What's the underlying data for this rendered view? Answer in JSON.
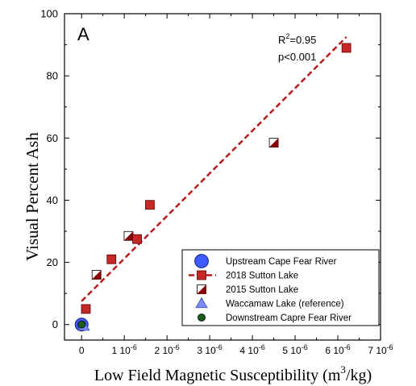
{
  "chart_data": {
    "type": "scatter",
    "panel_label": "A",
    "xlabel": "Low Field Magnetic Susceptibility (m",
    "xlabel_sup": "3",
    "xlabel_tail": "/kg)",
    "ylabel": "Visual Percent Ash",
    "xlim": [
      -4e-07,
      7e-06
    ],
    "ylim": [
      -5,
      100
    ],
    "x_ticks": [
      {
        "value": 0,
        "label": "0"
      },
      {
        "value": 1e-06,
        "label": "1 10",
        "exp": "-6"
      },
      {
        "value": 2e-06,
        "label": "2 10",
        "exp": "-6"
      },
      {
        "value": 3e-06,
        "label": "3 10",
        "exp": "-6"
      },
      {
        "value": 4e-06,
        "label": "4 10",
        "exp": "-6"
      },
      {
        "value": 5e-06,
        "label": "5 10",
        "exp": "-6"
      },
      {
        "value": 6e-06,
        "label": "6 10",
        "exp": "-6"
      },
      {
        "value": 7e-06,
        "label": "7 10",
        "exp": "-6"
      }
    ],
    "y_ticks": [
      0,
      20,
      40,
      60,
      80,
      100
    ],
    "annotation": {
      "r2_label": "R",
      "r2_sup": "2",
      "r2_value": "=0.95",
      "p_text": "p<0.001"
    },
    "regression_line": {
      "x": [
        0,
        6.2e-06
      ],
      "y": [
        7.5,
        92.5
      ],
      "color": "#b71c1c",
      "style": "dashed"
    },
    "series": [
      {
        "name": "Upstream Cape Fear River",
        "marker": "circle",
        "color": "#3d5afe",
        "points": [
          {
            "x": 0,
            "y": 0
          }
        ]
      },
      {
        "name": "2018 Sutton Lake",
        "marker": "square",
        "color": "#c62828",
        "points": [
          {
            "x": 1e-07,
            "y": 5
          },
          {
            "x": 7e-07,
            "y": 21
          },
          {
            "x": 1.3e-06,
            "y": 27.5
          },
          {
            "x": 1.6e-06,
            "y": 38.5
          },
          {
            "x": 6.2e-06,
            "y": 89
          }
        ]
      },
      {
        "name": "2015 Sutton Lake",
        "marker": "half-square",
        "color": "#8b0000",
        "points": [
          {
            "x": 3.5e-07,
            "y": 16
          },
          {
            "x": 1.1e-06,
            "y": 28.5
          },
          {
            "x": 4.5e-06,
            "y": 58.5
          }
        ]
      },
      {
        "name": "Waccamaw Lake (reference)",
        "marker": "triangle",
        "color": "#7b8cf5",
        "points": [
          {
            "x": 5e-08,
            "y": -0.5
          }
        ]
      },
      {
        "name": "Downstream Capre Fear River",
        "marker": "small-circle",
        "color": "#1b5e20",
        "points": [
          {
            "x": 0,
            "y": 0
          }
        ]
      }
    ],
    "legend_position": "bottom-right"
  }
}
